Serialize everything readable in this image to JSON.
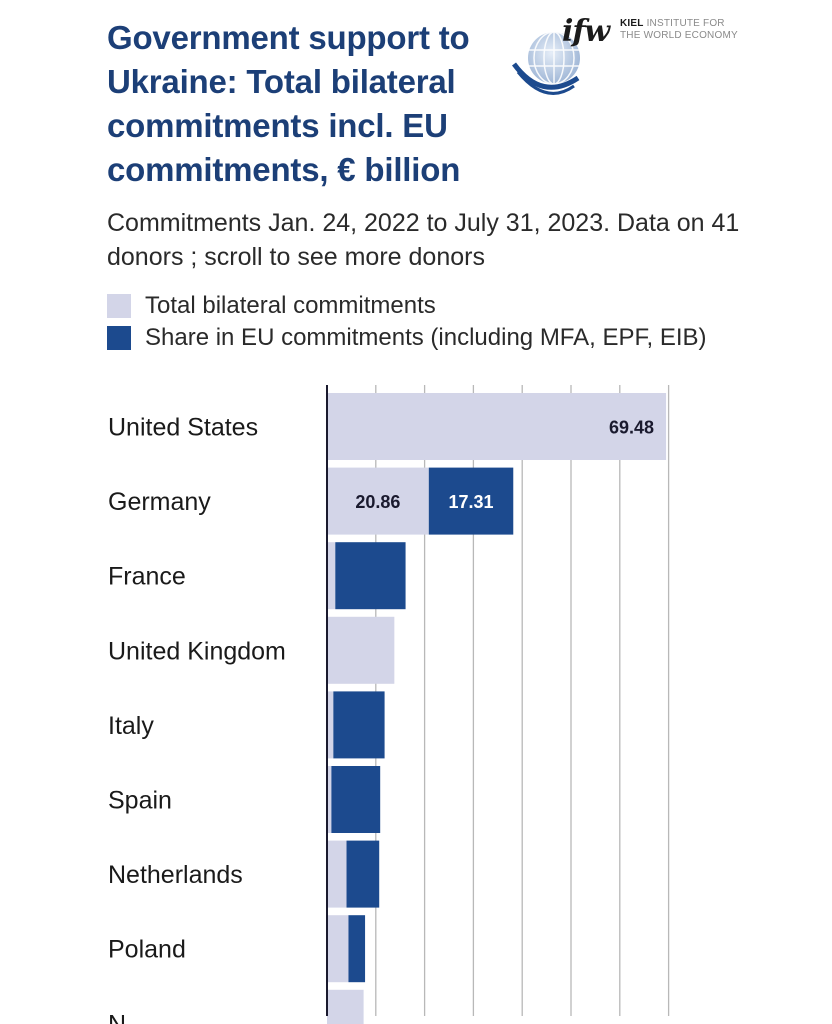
{
  "header": {
    "title": "Government support to Ukraine: Total bilateral commitments incl. EU commitments, € billion",
    "subtitle": "Commitments Jan. 24, 2022 to July 31, 2023. Data on 41 donors ; scroll to see more donors",
    "logo": {
      "mark": "ifw",
      "line1_bold": "KIEL",
      "line1_rest": "INSTITUTE FOR",
      "line2": "THE WORLD ECONOMY",
      "icon": "globe-icon"
    }
  },
  "colors": {
    "total": "#d3d5e8",
    "eu": "#1c4a8e",
    "title": "#1c3f77",
    "axis": "#1a1a2e",
    "grid": "#b8b8b8"
  },
  "chart_data": {
    "type": "bar",
    "orientation": "horizontal",
    "stacked": true,
    "categories": [
      "United States",
      "Germany",
      "France",
      "United Kingdom",
      "Italy",
      "Spain",
      "Netherlands",
      "Poland",
      "N"
    ],
    "series": [
      {
        "name": "Total bilateral commitments",
        "color": "#d3d5e8",
        "values": [
          69.48,
          20.86,
          1.7,
          13.8,
          1.3,
          0.9,
          4.0,
          4.4,
          7.5
        ]
      },
      {
        "name": "Share in EU commitments (including MFA, EPF, EIB)",
        "color": "#1c4a8e",
        "values": [
          0,
          17.31,
          14.4,
          0,
          10.5,
          10.0,
          6.7,
          3.4,
          0
        ]
      }
    ],
    "data_labels": [
      {
        "category": "United States",
        "series": 0,
        "text": "69.48"
      },
      {
        "category": "Germany",
        "series": 0,
        "text": "20.86"
      },
      {
        "category": "Germany",
        "series": 1,
        "text": "17.31"
      }
    ],
    "xlim": [
      0,
      70
    ],
    "x_gridlines": [
      10,
      20,
      30,
      40,
      50,
      60,
      70
    ],
    "grid": true,
    "legend": "top-left"
  }
}
